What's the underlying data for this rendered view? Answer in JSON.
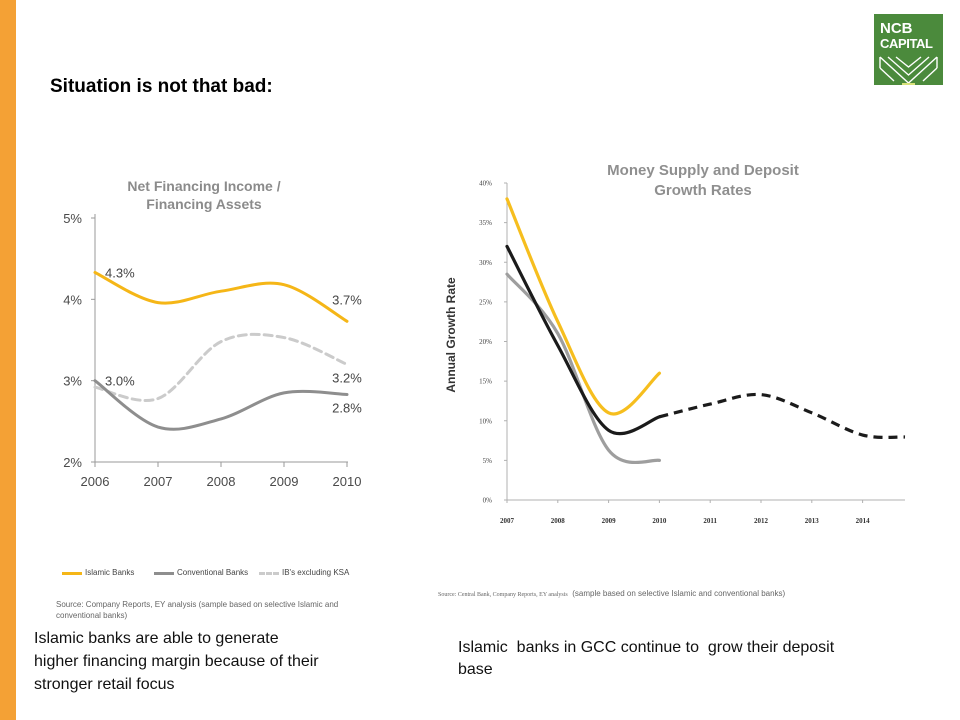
{
  "slide": {
    "title": "Situation is not that bad:",
    "accent_color": "#F4A135",
    "logo": {
      "line1": "NCB",
      "line2": "CAPITAL",
      "color": "#4B8A3C"
    }
  },
  "left_panel": {
    "source": "Source: Company Reports, EY analysis (sample based on selective Islamic and conventional banks)",
    "caption_lines": [
      "Islamic banks are able to generate",
      "higher financing margin because of their",
      "stronger retail focus"
    ]
  },
  "right_panel": {
    "source_prefix": "Source: Central Bank, Company Reports, EY analysis",
    "source_note": "(sample based on selective Islamic and conventional banks)",
    "caption_lines": [
      "Islamic  banks in GCC continue to  grow their deposit",
      "base"
    ]
  },
  "chart_data": [
    {
      "type": "line",
      "title_lines": [
        "Net Financing Income /",
        "Financing Assets"
      ],
      "categories": [
        "2006",
        "2007",
        "2008",
        "2009",
        "2010"
      ],
      "ylim": [
        2,
        5
      ],
      "yticks": [
        2,
        3,
        4,
        5
      ],
      "ytick_labels": [
        "2%",
        "3%",
        "4%",
        "5%"
      ],
      "grid": false,
      "legend": "bottom",
      "series": [
        {
          "name": "Islamic Banks",
          "color": "#F5B617",
          "style": "solid",
          "values": [
            4.33,
            3.96,
            4.1,
            4.18,
            3.73
          ],
          "labels": [
            "4.3%",
            null,
            null,
            null,
            "3.7%"
          ]
        },
        {
          "name": "Conventional Banks",
          "color": "#8E8E8E",
          "style": "solid",
          "values": [
            3.0,
            2.43,
            2.53,
            2.85,
            2.83
          ],
          "labels": [
            "3.0%",
            null,
            null,
            null,
            "2.8%"
          ]
        },
        {
          "name": "IB's excluding KSA",
          "color": "#CBCBCB",
          "style": "dashed",
          "values": [
            2.92,
            2.78,
            3.48,
            3.53,
            3.2
          ],
          "labels": [
            null,
            null,
            null,
            null,
            "3.2%"
          ]
        }
      ]
    },
    {
      "type": "line",
      "title_lines": [
        "Money Supply and Deposit",
        "Growth Rates"
      ],
      "ylabel": "Annual Growth Rate",
      "x": [
        2007,
        2008,
        2009,
        2010,
        2011,
        2012,
        2013,
        2014
      ],
      "ylim": [
        0,
        40
      ],
      "yticks": [
        0,
        5,
        10,
        15,
        20,
        25,
        30,
        35,
        40
      ],
      "ytick_labels": [
        "0%",
        "5%",
        "10%",
        "15%",
        "20%",
        "25%",
        "30%",
        "35%",
        "40%"
      ],
      "grid": false,
      "legend": "none",
      "series": [
        {
          "color": "#F6BE1E",
          "style": "solid",
          "x": [
            2007,
            2008,
            2009,
            2010
          ],
          "values": [
            38,
            22.5,
            11,
            16
          ]
        },
        {
          "color": "#1B1B1B",
          "style": "solid",
          "x": [
            2007,
            2008,
            2009,
            2010
          ],
          "values": [
            32,
            19.5,
            8.8,
            10.5
          ]
        },
        {
          "color": "#1B1B1B",
          "style": "dashed",
          "x": [
            2010,
            2011,
            2012,
            2013,
            2014
          ],
          "values": [
            10.5,
            12.1,
            13.3,
            11,
            8.2
          ]
        },
        {
          "color": "#9E9E9E",
          "style": "solid",
          "x": [
            2007,
            2008,
            2009,
            2010
          ],
          "values": [
            28.5,
            21,
            6.3,
            5
          ]
        }
      ]
    }
  ]
}
